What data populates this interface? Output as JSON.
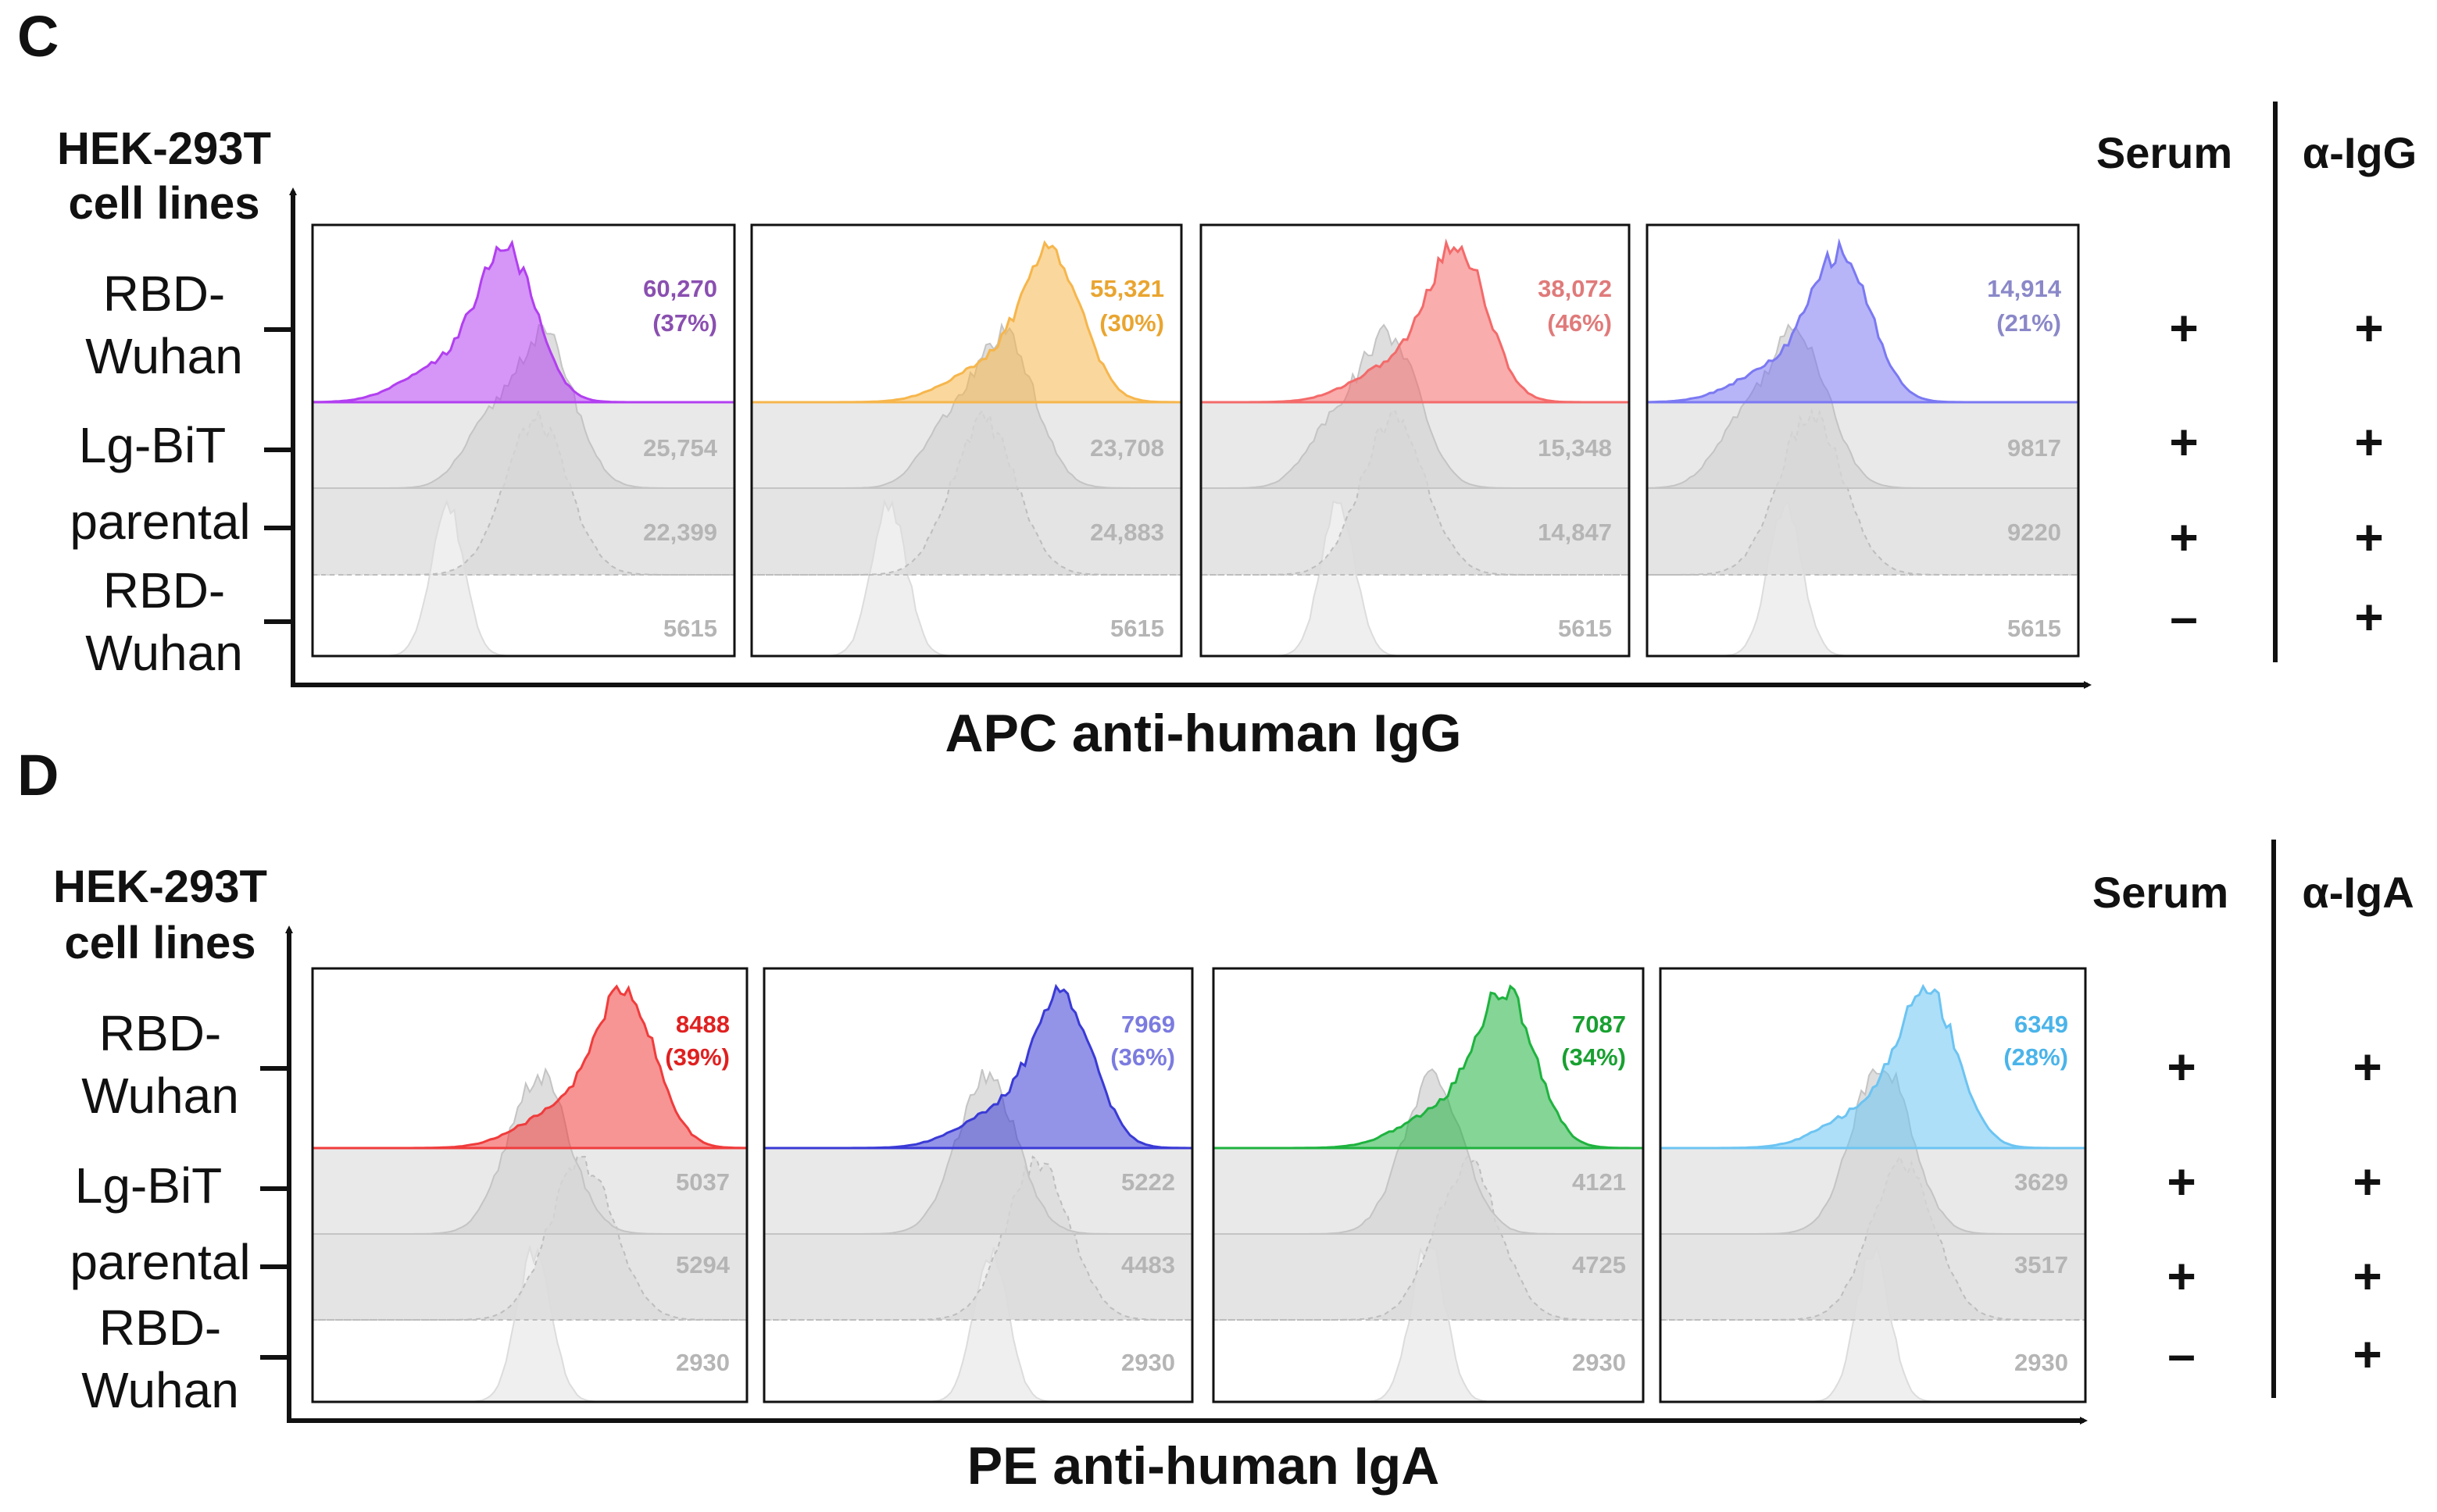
{
  "chart_data": [
    {
      "type": "histogram",
      "panel_label": "C",
      "xlabel": "APC anti-human IgG",
      "ylabel_line1": "HEK-293T",
      "ylabel_line2": "cell lines",
      "rows": [
        {
          "line1": "RBD-",
          "line2": "Wuhan"
        },
        {
          "line1": "Lg-BiT",
          "line2": ""
        },
        {
          "line1": "parental",
          "line2": ""
        },
        {
          "line1": "RBD-",
          "line2": "Wuhan"
        }
      ],
      "conditions": {
        "header1": "Serum",
        "header2": "α-IgG",
        "serum": [
          "+",
          "+",
          "+",
          "–"
        ],
        "secondary": [
          "+",
          "+",
          "+",
          "+"
        ]
      },
      "samples": [
        {
          "color": "#b23ff0",
          "label_color": "#8a4fb0",
          "values": {
            "rbd": "60,270",
            "pct": "(37%)",
            "lgbit": "25,754",
            "parental": "22,399",
            "control": "5615"
          },
          "peak": 0.46
        },
        {
          "color": "#f6b64c",
          "label_color": "#e9a530",
          "values": {
            "rbd": "55,321",
            "pct": "(30%)",
            "lgbit": "23,708",
            "parental": "24,883",
            "control": "5615"
          },
          "peak": 0.7
        },
        {
          "color": "#f46a6a",
          "label_color": "#e07a7a",
          "values": {
            "rbd": "38,072",
            "pct": "(46%)",
            "lgbit": "15,348",
            "parental": "14,847",
            "control": "5615"
          },
          "peak": 0.6
        },
        {
          "color": "#7b79f2",
          "label_color": "#8a88c8",
          "values": {
            "rbd": "14,914",
            "pct": "(21%)",
            "lgbit": "9817",
            "parental": "9220",
            "control": "5615"
          },
          "peak": 0.45
        }
      ]
    },
    {
      "type": "histogram",
      "panel_label": "D",
      "xlabel": "PE anti-human IgA",
      "ylabel_line1": "HEK-293T",
      "ylabel_line2": "cell lines",
      "rows": [
        {
          "line1": "RBD-",
          "line2": "Wuhan"
        },
        {
          "line1": "Lg-BiT",
          "line2": ""
        },
        {
          "line1": "parental",
          "line2": ""
        },
        {
          "line1": "RBD-",
          "line2": "Wuhan"
        }
      ],
      "conditions": {
        "header1": "Serum",
        "header2": "α-IgA",
        "serum": [
          "+",
          "+",
          "+",
          "–"
        ],
        "secondary": [
          "+",
          "+",
          "+",
          "+"
        ]
      },
      "samples": [
        {
          "color": "#f03c3c",
          "label_color": "#e02020",
          "values": {
            "rbd": "8488",
            "pct": "(39%)",
            "lgbit": "5037",
            "parental": "5294",
            "control": "2930"
          },
          "peak": 0.72
        },
        {
          "color": "#3a3ad6",
          "label_color": "#7b7be0",
          "values": {
            "rbd": "7969",
            "pct": "(36%)",
            "lgbit": "5222",
            "parental": "4483",
            "control": "2930"
          },
          "peak": 0.7
        },
        {
          "color": "#1fb33f",
          "label_color": "#18a030",
          "values": {
            "rbd": "7087",
            "pct": "(34%)",
            "lgbit": "4121",
            "parental": "4725",
            "control": "2930"
          },
          "peak": 0.68
        },
        {
          "color": "#6cc4f2",
          "label_color": "#4ab4ea",
          "values": {
            "rbd": "6349",
            "pct": "(28%)",
            "lgbit": "3629",
            "parental": "3517",
            "control": "2930"
          },
          "peak": 0.63
        }
      ]
    }
  ]
}
